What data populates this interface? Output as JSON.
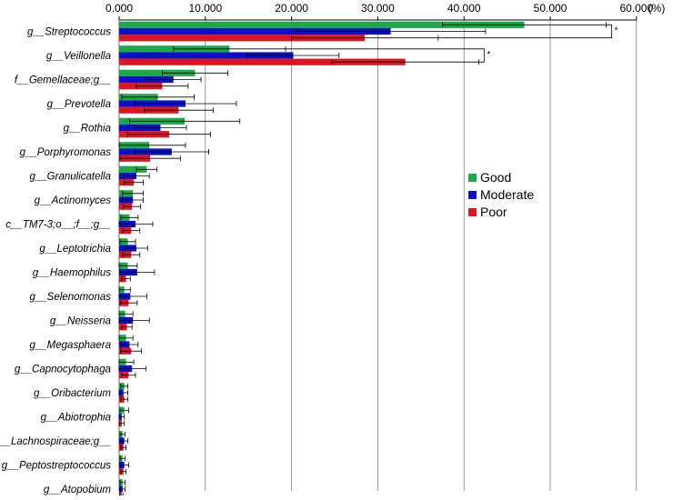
{
  "chart_data": {
    "type": "bar",
    "orientation": "horizontal",
    "unit_label": "(%)",
    "xlim": [
      0,
      60
    ],
    "x_ticks": [
      "0.000",
      "10.000",
      "20.000",
      "30.000",
      "40.000",
      "50.000",
      "60.000"
    ],
    "x_tick_values": [
      0,
      10,
      20,
      30,
      40,
      50,
      60
    ],
    "grid": true,
    "legend_position": "right",
    "categories": [
      "g__Streptococcus",
      "g__Veillonella",
      "f__Gemellaceae;g__",
      "g__Prevotella",
      "g__Rothia",
      "g__Porphyromonas",
      "g__Granulicatella",
      "g__Actinomyces",
      "c__TM7-3;o__;f__;g__",
      "g__Leptotrichia",
      "g__Haemophilus",
      "g__Selenomonas",
      "g__Neisseria",
      "g__Megasphaera",
      "g__Capnocytophaga",
      "g__Oribacterium",
      "g__Abiotrophia",
      "f__Lachnospiraceae;g__",
      "g__Peptostreptococcus",
      "g__Atopobium"
    ],
    "series": [
      {
        "name": "Good",
        "color": "#1aaa4a",
        "values": [
          47.0,
          12.8,
          8.8,
          4.5,
          7.6,
          3.5,
          3.2,
          1.6,
          1.2,
          1.0,
          1.0,
          0.6,
          0.7,
          0.8,
          0.8,
          0.6,
          0.6,
          0.4,
          0.4,
          0.4
        ],
        "errors": [
          9.5,
          6.5,
          3.8,
          4.2,
          6.4,
          4.2,
          1.2,
          1.2,
          1.0,
          0.9,
          1.1,
          0.7,
          0.9,
          0.8,
          0.9,
          0.4,
          0.5,
          0.3,
          0.3,
          0.3
        ]
      },
      {
        "name": "Moderate",
        "color": "#0a10c8",
        "values": [
          31.5,
          20.2,
          6.3,
          7.7,
          4.8,
          6.1,
          2.0,
          1.6,
          1.9,
          2.0,
          2.1,
          1.3,
          1.6,
          1.2,
          1.5,
          0.5,
          0.3,
          0.6,
          0.6,
          0.4
        ],
        "errors": [
          11.0,
          5.3,
          3.2,
          5.9,
          3.0,
          4.3,
          1.5,
          1.2,
          2.0,
          1.3,
          2.0,
          1.9,
          1.9,
          1.0,
          1.6,
          0.5,
          0.3,
          0.4,
          0.5,
          0.3
        ]
      },
      {
        "name": "Poor",
        "color": "#e0141e",
        "values": [
          28.5,
          33.2,
          5.0,
          6.9,
          5.8,
          3.6,
          1.7,
          1.5,
          1.4,
          1.4,
          0.8,
          1.1,
          0.9,
          1.4,
          1.1,
          0.6,
          0.3,
          0.5,
          0.5,
          0.3
        ],
        "errors": [
          8.5,
          8.5,
          3.0,
          4.0,
          4.8,
          3.5,
          1.1,
          1.0,
          1.0,
          1.0,
          0.5,
          1.0,
          0.6,
          1.2,
          0.8,
          0.4,
          0.3,
          0.3,
          0.3,
          0.2
        ]
      }
    ],
    "annotations": [
      {
        "type": "significance-bracket",
        "category": "g__Streptococcus",
        "label": "*"
      },
      {
        "type": "significance-bracket",
        "category": "g__Veillonella",
        "label": "*"
      }
    ]
  }
}
